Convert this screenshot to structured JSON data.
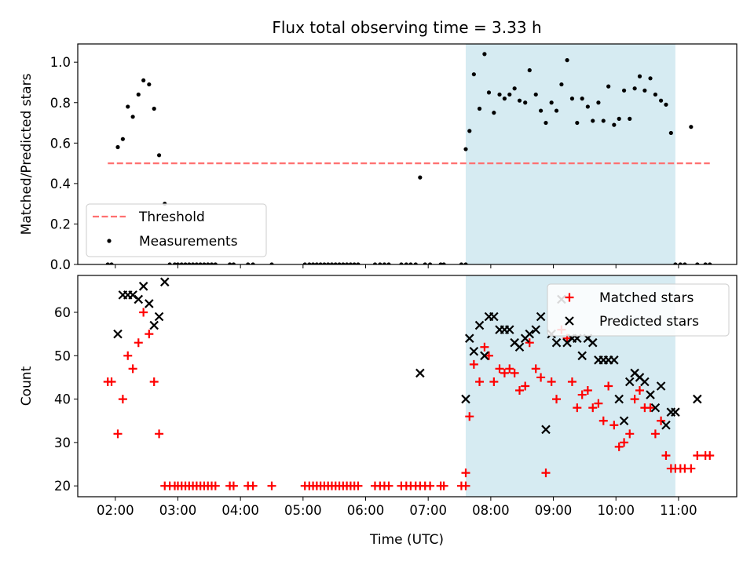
{
  "chart_data": {
    "title": "Flux total observing time = 3.33 h",
    "xlabel": "Time (UTC)",
    "x_unit": "hours UTC",
    "xlim": [
      1.4,
      11.93
    ],
    "xticks": [
      2,
      3,
      4,
      5,
      6,
      7,
      8,
      9,
      10,
      11
    ],
    "xtick_labels": [
      "02:00",
      "03:00",
      "04:00",
      "05:00",
      "06:00",
      "07:00",
      "08:00",
      "09:00",
      "10:00",
      "11:00"
    ],
    "shaded_span": {
      "x_start": 7.6,
      "x_end": 10.95,
      "color": "#add8e6"
    },
    "colors": {
      "threshold": "#ff7070",
      "measurements": "#000000",
      "matched": "#ff0000",
      "predicted": "#000000",
      "shade": "#add8e6"
    },
    "panels": [
      {
        "id": "ratio",
        "type": "scatter",
        "ylabel": "Matched/Predicted stars",
        "ylim": [
          0,
          1.09
        ],
        "yticks": [
          0.0,
          0.2,
          0.4,
          0.6,
          0.8,
          1.0
        ],
        "ytick_labels": [
          "0.0",
          "0.2",
          "0.4",
          "0.6",
          "0.8",
          "1.0"
        ],
        "legend_position": "lower-left",
        "threshold": {
          "name": "Threshold",
          "y": 0.5,
          "x_range": [
            1.88,
            11.5
          ],
          "style": "dashed"
        },
        "series": [
          {
            "name": "Measurements",
            "marker": "dot",
            "x": [
              1.88,
              1.94,
              2.04,
              2.12,
              2.2,
              2.28,
              2.37,
              2.45,
              2.54,
              2.62,
              2.7,
              2.79,
              2.87,
              2.95,
              3.0,
              3.06,
              3.12,
              3.18,
              3.24,
              3.3,
              3.36,
              3.42,
              3.48,
              3.54,
              3.6,
              3.83,
              3.89,
              4.12,
              4.2,
              4.5,
              5.03,
              5.1,
              5.16,
              5.22,
              5.28,
              5.34,
              5.4,
              5.46,
              5.52,
              5.58,
              5.64,
              5.7,
              5.76,
              5.82,
              5.88,
              6.15,
              6.23,
              6.3,
              6.37,
              6.57,
              6.65,
              6.72,
              6.8,
              6.87,
              6.95,
              7.03,
              7.2,
              7.25,
              7.53,
              7.6,
              7.6,
              7.66,
              7.73,
              7.82,
              7.9,
              7.97,
              8.05,
              8.14,
              8.22,
              8.3,
              8.38,
              8.46,
              8.55,
              8.62,
              8.72,
              8.8,
              8.88,
              8.97,
              9.05,
              9.13,
              9.22,
              9.3,
              9.38,
              9.46,
              9.55,
              9.63,
              9.72,
              9.8,
              9.88,
              9.97,
              10.05,
              10.13,
              10.22,
              10.3,
              10.38,
              10.46,
              10.55,
              10.63,
              10.72,
              10.8,
              10.88,
              10.95,
              11.03,
              11.1,
              11.2,
              11.3,
              11.43,
              11.5
            ],
            "y": [
              0,
              0,
              0.58,
              0.62,
              0.78,
              0.73,
              0.84,
              0.91,
              0.89,
              0.77,
              0.54,
              0.3,
              0,
              0,
              0,
              0,
              0,
              0,
              0,
              0,
              0,
              0,
              0,
              0,
              0,
              0,
              0,
              0,
              0,
              0,
              0,
              0,
              0,
              0,
              0,
              0,
              0,
              0,
              0,
              0,
              0,
              0,
              0,
              0,
              0,
              0,
              0,
              0,
              0,
              0,
              0,
              0,
              0,
              0.43,
              0,
              0,
              0,
              0,
              0,
              0,
              0.57,
              0.66,
              0.94,
              0.77,
              1.04,
              0.85,
              0.75,
              0.84,
              0.82,
              0.84,
              0.87,
              0.81,
              0.8,
              0.96,
              0.84,
              0.76,
              0.7,
              0.8,
              0.76,
              0.89,
              1.01,
              0.82,
              0.7,
              0.82,
              0.78,
              0.71,
              0.8,
              0.71,
              0.88,
              0.69,
              0.72,
              0.86,
              0.72,
              0.87,
              0.93,
              0.86,
              0.92,
              0.84,
              0.81,
              0.79,
              0.65,
              0,
              0,
              0,
              0.68,
              0,
              0,
              0
            ]
          }
        ]
      },
      {
        "id": "counts",
        "type": "scatter",
        "ylabel": "Count",
        "ylim": [
          17.5,
          68.5
        ],
        "yticks": [
          20,
          30,
          40,
          50,
          60
        ],
        "ytick_labels": [
          "20",
          "30",
          "40",
          "50",
          "60"
        ],
        "legend_position": "upper-right",
        "series": [
          {
            "name": "Matched stars",
            "marker": "plus",
            "x": [
              1.88,
              1.94,
              2.04,
              2.12,
              2.2,
              2.28,
              2.37,
              2.45,
              2.54,
              2.62,
              2.7,
              2.79,
              2.87,
              2.95,
              3.0,
              3.06,
              3.12,
              3.18,
              3.24,
              3.3,
              3.36,
              3.42,
              3.48,
              3.54,
              3.6,
              3.83,
              3.89,
              4.12,
              4.2,
              4.5,
              5.03,
              5.1,
              5.16,
              5.22,
              5.28,
              5.34,
              5.4,
              5.46,
              5.52,
              5.58,
              5.64,
              5.7,
              5.76,
              5.82,
              5.88,
              6.15,
              6.23,
              6.3,
              6.37,
              6.57,
              6.65,
              6.72,
              6.8,
              6.87,
              6.95,
              7.03,
              7.2,
              7.25,
              7.53,
              7.6,
              7.6,
              7.66,
              7.73,
              7.82,
              7.9,
              7.97,
              8.05,
              8.14,
              8.22,
              8.3,
              8.38,
              8.46,
              8.55,
              8.62,
              8.72,
              8.8,
              8.88,
              8.97,
              9.05,
              9.13,
              9.22,
              9.3,
              9.38,
              9.46,
              9.55,
              9.63,
              9.72,
              9.8,
              9.88,
              9.97,
              10.05,
              10.13,
              10.22,
              10.3,
              10.38,
              10.46,
              10.55,
              10.63,
              10.72,
              10.8,
              10.88,
              10.95,
              11.03,
              11.1,
              11.2,
              11.3,
              11.43,
              11.5
            ],
            "y": [
              44,
              44,
              32,
              40,
              50,
              47,
              53,
              60,
              55,
              44,
              32,
              20,
              20,
              20,
              20,
              20,
              20,
              20,
              20,
              20,
              20,
              20,
              20,
              20,
              20,
              20,
              20,
              20,
              20,
              20,
              20,
              20,
              20,
              20,
              20,
              20,
              20,
              20,
              20,
              20,
              20,
              20,
              20,
              20,
              20,
              20,
              20,
              20,
              20,
              20,
              20,
              20,
              20,
              20,
              20,
              20,
              20,
              20,
              20,
              20,
              23,
              36,
              48,
              44,
              52,
              50,
              44,
              47,
              46,
              47,
              46,
              42,
              43,
              53,
              47,
              45,
              23,
              44,
              40,
              56,
              54,
              44,
              38,
              41,
              42,
              38,
              39,
              35,
              43,
              34,
              29,
              30,
              32,
              40,
              42,
              38,
              38,
              32,
              35,
              27,
              24,
              24,
              24,
              24,
              24,
              27,
              27,
              27
            ]
          },
          {
            "name": "Predicted stars",
            "marker": "x",
            "x": [
              2.04,
              2.12,
              2.2,
              2.28,
              2.37,
              2.45,
              2.54,
              2.62,
              2.7,
              2.79,
              6.87,
              7.6,
              7.66,
              7.73,
              7.82,
              7.9,
              7.97,
              8.05,
              8.14,
              8.22,
              8.3,
              8.38,
              8.46,
              8.55,
              8.62,
              8.72,
              8.8,
              8.88,
              8.97,
              9.05,
              9.13,
              9.22,
              9.3,
              9.38,
              9.46,
              9.55,
              9.63,
              9.72,
              9.8,
              9.88,
              9.97,
              10.05,
              10.13,
              10.22,
              10.3,
              10.38,
              10.46,
              10.55,
              10.63,
              10.72,
              10.8,
              10.88,
              10.95,
              11.3
            ],
            "y": [
              55,
              64,
              64,
              64,
              63,
              66,
              62,
              57,
              59,
              67,
              46,
              40,
              54,
              51,
              57,
              50,
              59,
              59,
              56,
              56,
              56,
              53,
              52,
              54,
              55,
              56,
              59,
              33,
              55,
              53,
              63,
              53,
              54,
              54,
              50,
              54,
              53,
              49,
              49,
              49,
              49,
              40,
              35,
              44,
              46,
              45,
              44,
              41,
              38,
              43,
              34,
              37,
              37,
              40
            ]
          }
        ]
      }
    ]
  }
}
